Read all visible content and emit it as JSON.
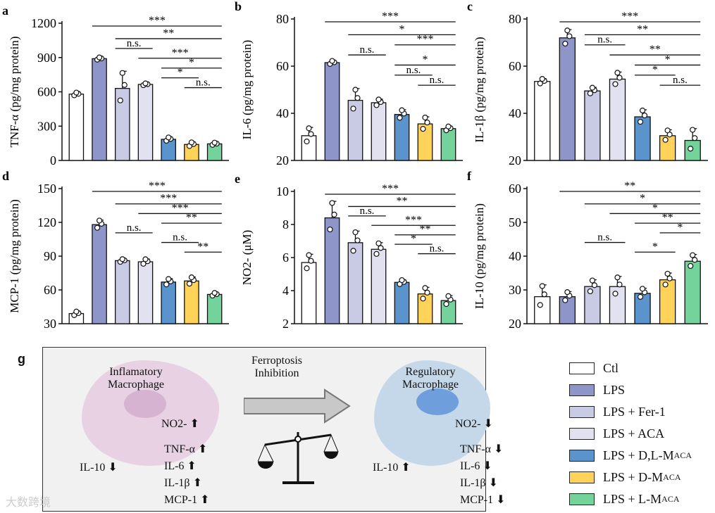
{
  "groups": [
    "Ctl",
    "LPS",
    "LPS + Fer-1",
    "LPS + ACA",
    "LPS + D,L-MACA",
    "LPS + D-MACA",
    "LPS + L-MACA"
  ],
  "colors": [
    "#ffffff",
    "#8e95c8",
    "#c9cbe4",
    "#e1e1ef",
    "#5b93cc",
    "#ffd35a",
    "#74d39b"
  ],
  "chart_data": [
    {
      "panel": "a",
      "type": "bar",
      "ylabel": "TNF-α (pg/mg protein)",
      "ylim": [
        0,
        1200
      ],
      "yticks": [
        0,
        300,
        600,
        900,
        1200
      ],
      "values": [
        580,
        890,
        630,
        665,
        185,
        140,
        145
      ],
      "errors": [
        15,
        12,
        150,
        10,
        18,
        20,
        12
      ],
      "sig": [
        {
          "from": 1,
          "to": 6,
          "label": "***"
        },
        {
          "from": 2,
          "to": 6,
          "label": "**"
        },
        {
          "from": 2,
          "to": 3,
          "label": "n.s."
        },
        {
          "from": 3,
          "to": 6,
          "label": "***"
        },
        {
          "from": 4,
          "to": 6,
          "label": "*"
        },
        {
          "from": 4,
          "to": 5,
          "label": "*"
        },
        {
          "from": 5,
          "to": 6,
          "label": "n.s."
        }
      ]
    },
    {
      "panel": "b",
      "type": "bar",
      "ylabel": "IL-6 (pg/mg protein)",
      "ylim": [
        20,
        80
      ],
      "yticks": [
        20,
        40,
        60,
        80
      ],
      "values": [
        30.5,
        61.5,
        45.5,
        44.5,
        39.5,
        35.5,
        33.5
      ],
      "errors": [
        3.5,
        0.8,
        5,
        1.5,
        2,
        3,
        1
      ],
      "sig": [
        {
          "from": 1,
          "to": 6,
          "label": "***"
        },
        {
          "from": 2,
          "to": 6,
          "label": "*"
        },
        {
          "from": 4,
          "to": 6,
          "label": "***"
        },
        {
          "from": 2,
          "to": 3,
          "label": "n.s."
        },
        {
          "from": 4,
          "to": 6,
          "label": "*"
        },
        {
          "from": 4,
          "to": 5,
          "label": "n.s."
        },
        {
          "from": 5,
          "to": 6,
          "label": "n.s."
        }
      ]
    },
    {
      "panel": "c",
      "type": "bar",
      "ylabel": "IL-1β (pg/mg protein)",
      "ylim": [
        20,
        80
      ],
      "yticks": [
        20,
        40,
        60,
        80
      ],
      "values": [
        53.5,
        72,
        49.5,
        54.5,
        38.5,
        30.5,
        28.5
      ],
      "errors": [
        1.2,
        3.5,
        1.5,
        3,
        3,
        2.5,
        5
      ],
      "sig": [
        {
          "from": 1,
          "to": 6,
          "label": "***"
        },
        {
          "from": 2,
          "to": 6,
          "label": "**"
        },
        {
          "from": 2,
          "to": 3,
          "label": "n.s."
        },
        {
          "from": 3,
          "to": 6,
          "label": "**"
        },
        {
          "from": 4,
          "to": 6,
          "label": "*"
        },
        {
          "from": 4,
          "to": 5,
          "label": "*"
        },
        {
          "from": 5,
          "to": 6,
          "label": "n.s."
        }
      ]
    },
    {
      "panel": "d",
      "type": "bar",
      "ylabel": "MCP-1 (pg/mg protein)",
      "ylim": [
        30,
        150
      ],
      "yticks": [
        30,
        60,
        90,
        120,
        150
      ],
      "values": [
        39,
        118,
        86,
        85,
        67,
        68,
        56
      ],
      "errors": [
        2,
        4,
        1.5,
        2.5,
        3,
        3.5,
        1.5
      ],
      "sig": [
        {
          "from": 1,
          "to": 6,
          "label": "***"
        },
        {
          "from": 2,
          "to": 6,
          "label": "***"
        },
        {
          "from": 3,
          "to": 6,
          "label": "***"
        },
        {
          "from": 4,
          "to": 6,
          "label": "**"
        },
        {
          "from": 2,
          "to": 3,
          "label": "n.s."
        },
        {
          "from": 4,
          "to": 5,
          "label": "n.s."
        },
        {
          "from": 5,
          "to": 6,
          "label": "**"
        }
      ]
    },
    {
      "panel": "e",
      "type": "bar",
      "ylabel": "NO2- (μM)",
      "ylim": [
        2,
        10
      ],
      "yticks": [
        2,
        4,
        6,
        8,
        10
      ],
      "values": [
        5.7,
        8.4,
        6.9,
        6.5,
        4.5,
        3.8,
        3.4
      ],
      "errors": [
        0.5,
        1,
        0.7,
        0.4,
        0.15,
        0.4,
        0.3
      ],
      "sig": [
        {
          "from": 1,
          "to": 6,
          "label": "***"
        },
        {
          "from": 2,
          "to": 6,
          "label": "**"
        },
        {
          "from": 2,
          "to": 3,
          "label": "n.s."
        },
        {
          "from": 3,
          "to": 6,
          "label": "***"
        },
        {
          "from": 4,
          "to": 6,
          "label": "**"
        },
        {
          "from": 4,
          "to": 5,
          "label": "*"
        },
        {
          "from": 5,
          "to": 6,
          "label": "n.s."
        }
      ]
    },
    {
      "panel": "f",
      "type": "bar",
      "ylabel": "IL-10 (pg/mg protein)",
      "ylim": [
        20,
        60
      ],
      "yticks": [
        20,
        30,
        40,
        50,
        60
      ],
      "values": [
        28,
        28,
        31,
        31,
        29,
        33,
        38.5
      ],
      "errors": [
        3.5,
        1.5,
        2,
        3,
        1.5,
        2,
        2
      ],
      "sig": [
        {
          "from": 1,
          "to": 6,
          "label": "**"
        },
        {
          "from": 2,
          "to": 6,
          "label": "*"
        },
        {
          "from": 3,
          "to": 6,
          "label": "*"
        },
        {
          "from": 4,
          "to": 6,
          "label": "**"
        },
        {
          "from": 5,
          "to": 6,
          "label": "*"
        },
        {
          "from": 2,
          "to": 3,
          "label": "n.s."
        },
        {
          "from": 4,
          "to": 5,
          "label": "*"
        }
      ]
    }
  ],
  "diagram": {
    "label": "g",
    "left_title": "Inflamatory\nMacrophage",
    "right_title": "Regulatory\nMacrophage",
    "arrow_label": "Ferroptosis\nInhibition",
    "left_markers": [
      "NO2- ⬆",
      "TNF-α ⬆",
      "IL-6 ⬆",
      "IL-1β ⬆",
      "MCP-1 ⬆"
    ],
    "left_il10": "IL-10 ⬇",
    "right_markers": [
      "NO2- ⬇",
      "TNF-α ⬇",
      "IL-6 ⬇",
      "IL-1β ⬇",
      "MCP-1 ⬇"
    ],
    "right_il10": "IL-10 ⬆"
  },
  "legend": [
    {
      "label": "Ctl"
    },
    {
      "label": "LPS"
    },
    {
      "label": "LPS + Fer-1"
    },
    {
      "label": "LPS + ACA"
    },
    {
      "label": "LPS + D,L-M",
      "sub": "ACA"
    },
    {
      "label": "LPS + D-M",
      "sub": "ACA"
    },
    {
      "label": "LPS + L-M",
      "sub": "ACA"
    }
  ],
  "watermark": "大数跨境"
}
